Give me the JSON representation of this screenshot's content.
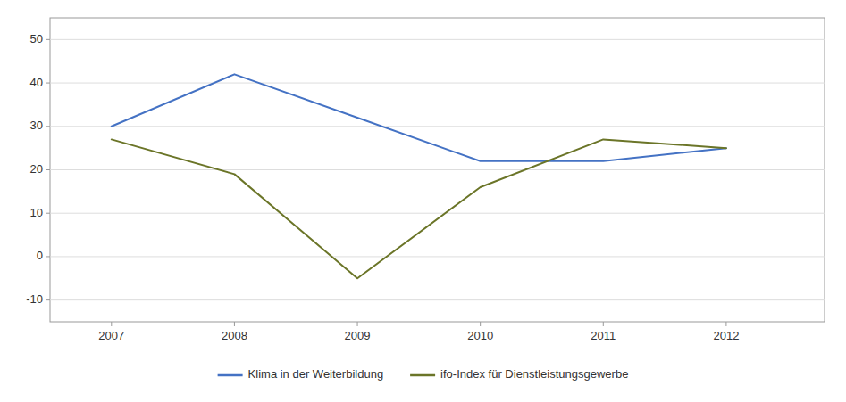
{
  "chart_data": {
    "type": "line",
    "x": [
      2007,
      2008,
      2009,
      2010,
      2011,
      2012
    ],
    "series": [
      {
        "name": "Klima in der Weiterbildung",
        "color": "#4472C4",
        "values": [
          30,
          42,
          32,
          22,
          22,
          25
        ]
      },
      {
        "name": "ifo-Index für Dienstleistungsgewerbe",
        "color": "#6B7528",
        "values": [
          27,
          19,
          -5,
          16,
          27,
          25
        ]
      }
    ],
    "xlim": [
      2006.5,
      2012.8
    ],
    "xticks": [
      2007,
      2008,
      2009,
      2010,
      2011,
      2012
    ],
    "ylim": [
      -15,
      55
    ],
    "yticks": [
      -10,
      0,
      10,
      20,
      30,
      40,
      50
    ],
    "grid": true,
    "legend": "bottom"
  }
}
